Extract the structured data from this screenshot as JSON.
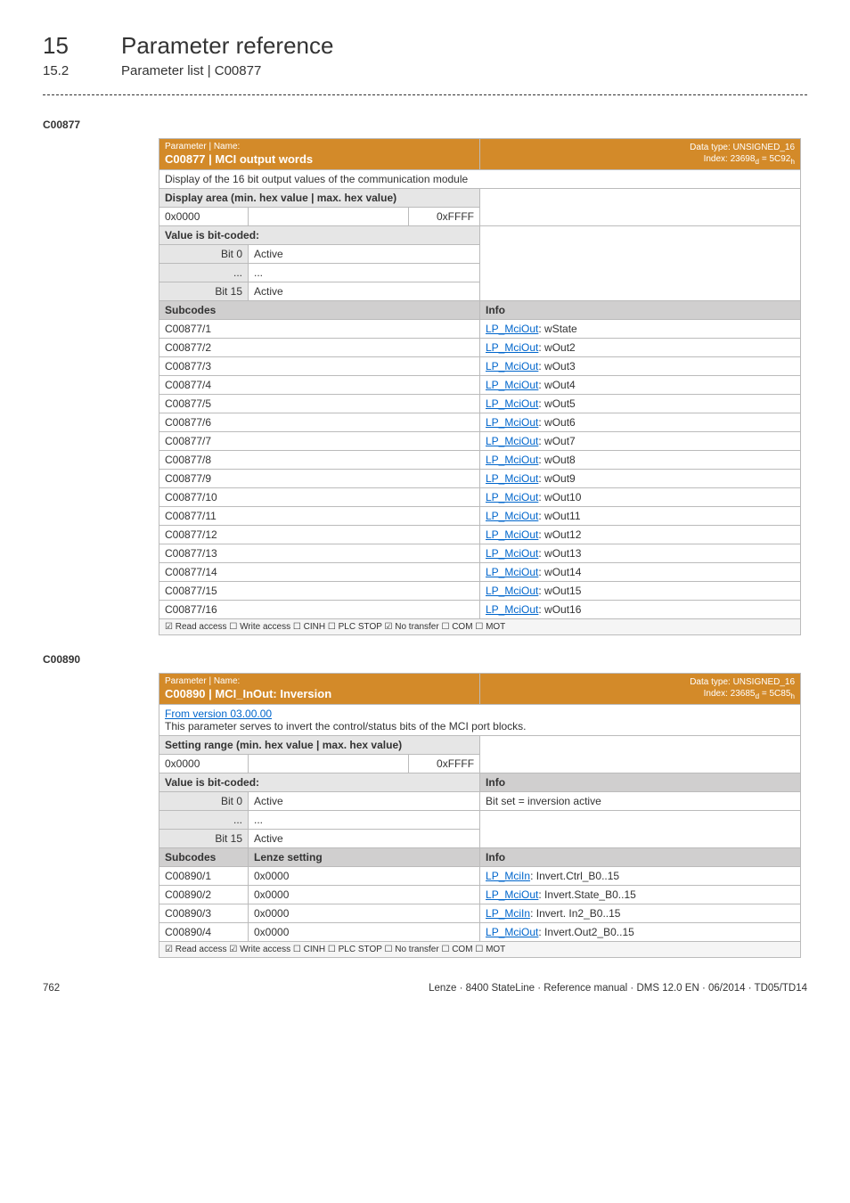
{
  "header": {
    "chapter_num": "15",
    "chapter_title": "Parameter reference",
    "subchapter_num": "15.2",
    "subchapter_title": "Parameter list | C00877"
  },
  "table1": {
    "code_label": "C00877",
    "param_label_top": "Parameter | Name:",
    "param_code_name": "C00877 | MCI output words",
    "datatype_line1": "Data type: UNSIGNED_16",
    "datatype_line2": "Index: 23698",
    "datatype_sub": "d",
    "datatype_eq": " = 5C92",
    "datatype_hex": "h",
    "description": "Display of the 16 bit output values of the communication module",
    "display_area_label": "Display area (min. hex value | max. hex value)",
    "min_hex": "0x0000",
    "max_hex": "0xFFFF",
    "value_bitcoded_label": "Value is bit-coded:",
    "bit0_label": "Bit 0",
    "bit0_val": "Active",
    "dots": "...",
    "bit15_label": "Bit 15",
    "bit15_val": "Active",
    "subcodes_label": "Subcodes",
    "info_label": "Info",
    "rows": [
      {
        "sub": "C00877/1",
        "link": "LP_MciOut",
        "text": ": wState"
      },
      {
        "sub": "C00877/2",
        "link": "LP_MciOut",
        "text": ": wOut2"
      },
      {
        "sub": "C00877/3",
        "link": "LP_MciOut",
        "text": ": wOut3"
      },
      {
        "sub": "C00877/4",
        "link": "LP_MciOut",
        "text": ": wOut4"
      },
      {
        "sub": "C00877/5",
        "link": "LP_MciOut",
        "text": ": wOut5"
      },
      {
        "sub": "C00877/6",
        "link": "LP_MciOut",
        "text": ": wOut6"
      },
      {
        "sub": "C00877/7",
        "link": "LP_MciOut",
        "text": ": wOut7"
      },
      {
        "sub": "C00877/8",
        "link": "LP_MciOut",
        "text": ": wOut8"
      },
      {
        "sub": "C00877/9",
        "link": "LP_MciOut",
        "text": ": wOut9"
      },
      {
        "sub": "C00877/10",
        "link": "LP_MciOut",
        "text": ": wOut10"
      },
      {
        "sub": "C00877/11",
        "link": "LP_MciOut",
        "text": ": wOut11"
      },
      {
        "sub": "C00877/12",
        "link": "LP_MciOut",
        "text": ": wOut12"
      },
      {
        "sub": "C00877/13",
        "link": "LP_MciOut",
        "text": ": wOut13"
      },
      {
        "sub": "C00877/14",
        "link": "LP_MciOut",
        "text": ": wOut14"
      },
      {
        "sub": "C00877/15",
        "link": "LP_MciOut",
        "text": ": wOut15"
      },
      {
        "sub": "C00877/16",
        "link": "LP_MciOut",
        "text": ": wOut16"
      }
    ],
    "access_row": "☑ Read access   ☐ Write access   ☐ CINH   ☐ PLC STOP   ☑ No transfer   ☐ COM   ☐ MOT"
  },
  "table2": {
    "code_label": "C00890",
    "param_label_top": "Parameter | Name:",
    "param_code_name": "C00890 | MCI_InOut: Inversion",
    "datatype_line1": "Data type: UNSIGNED_16",
    "datatype_line2": "Index: 23685",
    "datatype_sub": "d",
    "datatype_eq": " = 5C85",
    "datatype_hex": "h",
    "from_version": "From version 03.00.00",
    "description": "This parameter serves to invert the control/status bits of the MCI port blocks.",
    "setting_range_label": "Setting range (min. hex value | max. hex value)",
    "min_hex": "0x0000",
    "max_hex": "0xFFFF",
    "value_bitcoded_label": "Value is bit-coded:",
    "info_label_top": "Info",
    "bit0_label": "Bit 0",
    "bit0_val": "Active",
    "bit0_info": "Bit set = inversion active",
    "dots": "...",
    "bit15_label": "Bit 15",
    "bit15_val": "Active",
    "subcodes_label": "Subcodes",
    "lenze_setting_label": "Lenze setting",
    "info_label": "Info",
    "rows": [
      {
        "sub": "C00890/1",
        "setting": "0x0000",
        "link": "LP_MciIn",
        "text": ": Invert.Ctrl_B0..15"
      },
      {
        "sub": "C00890/2",
        "setting": "0x0000",
        "link": "LP_MciOut",
        "text": ": Invert.State_B0..15"
      },
      {
        "sub": "C00890/3",
        "setting": "0x0000",
        "link": "LP_MciIn",
        "text": ": Invert. In2_B0..15"
      },
      {
        "sub": "C00890/4",
        "setting": "0x0000",
        "link": "LP_MciOut",
        "text": ": Invert.Out2_B0..15"
      }
    ],
    "access_row": "☑ Read access   ☑ Write access   ☐ CINH   ☐ PLC STOP   ☐ No transfer   ☐ COM   ☐ MOT"
  },
  "footer": {
    "page_num": "762",
    "doc_line": "Lenze · 8400 StateLine · Reference manual · DMS 12.0 EN · 06/2014 · TD05/TD14"
  }
}
